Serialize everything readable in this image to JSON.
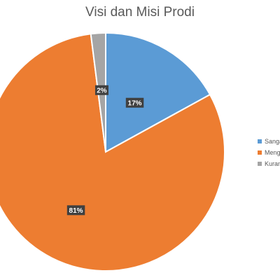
{
  "chart_data": {
    "type": "pie",
    "title": "Visi dan Misi Prodi",
    "slices": [
      {
        "label": "Sanga",
        "value": 17,
        "display": "17%",
        "color": "#5b9bd5"
      },
      {
        "label": "Meng",
        "value": 81,
        "display": "81%",
        "color": "#ed7d31"
      },
      {
        "label": "Kuran",
        "value": 2,
        "display": "2%",
        "color": "#a5a5a5"
      }
    ],
    "legend_position": "right",
    "data_label_style": "dark-box"
  }
}
